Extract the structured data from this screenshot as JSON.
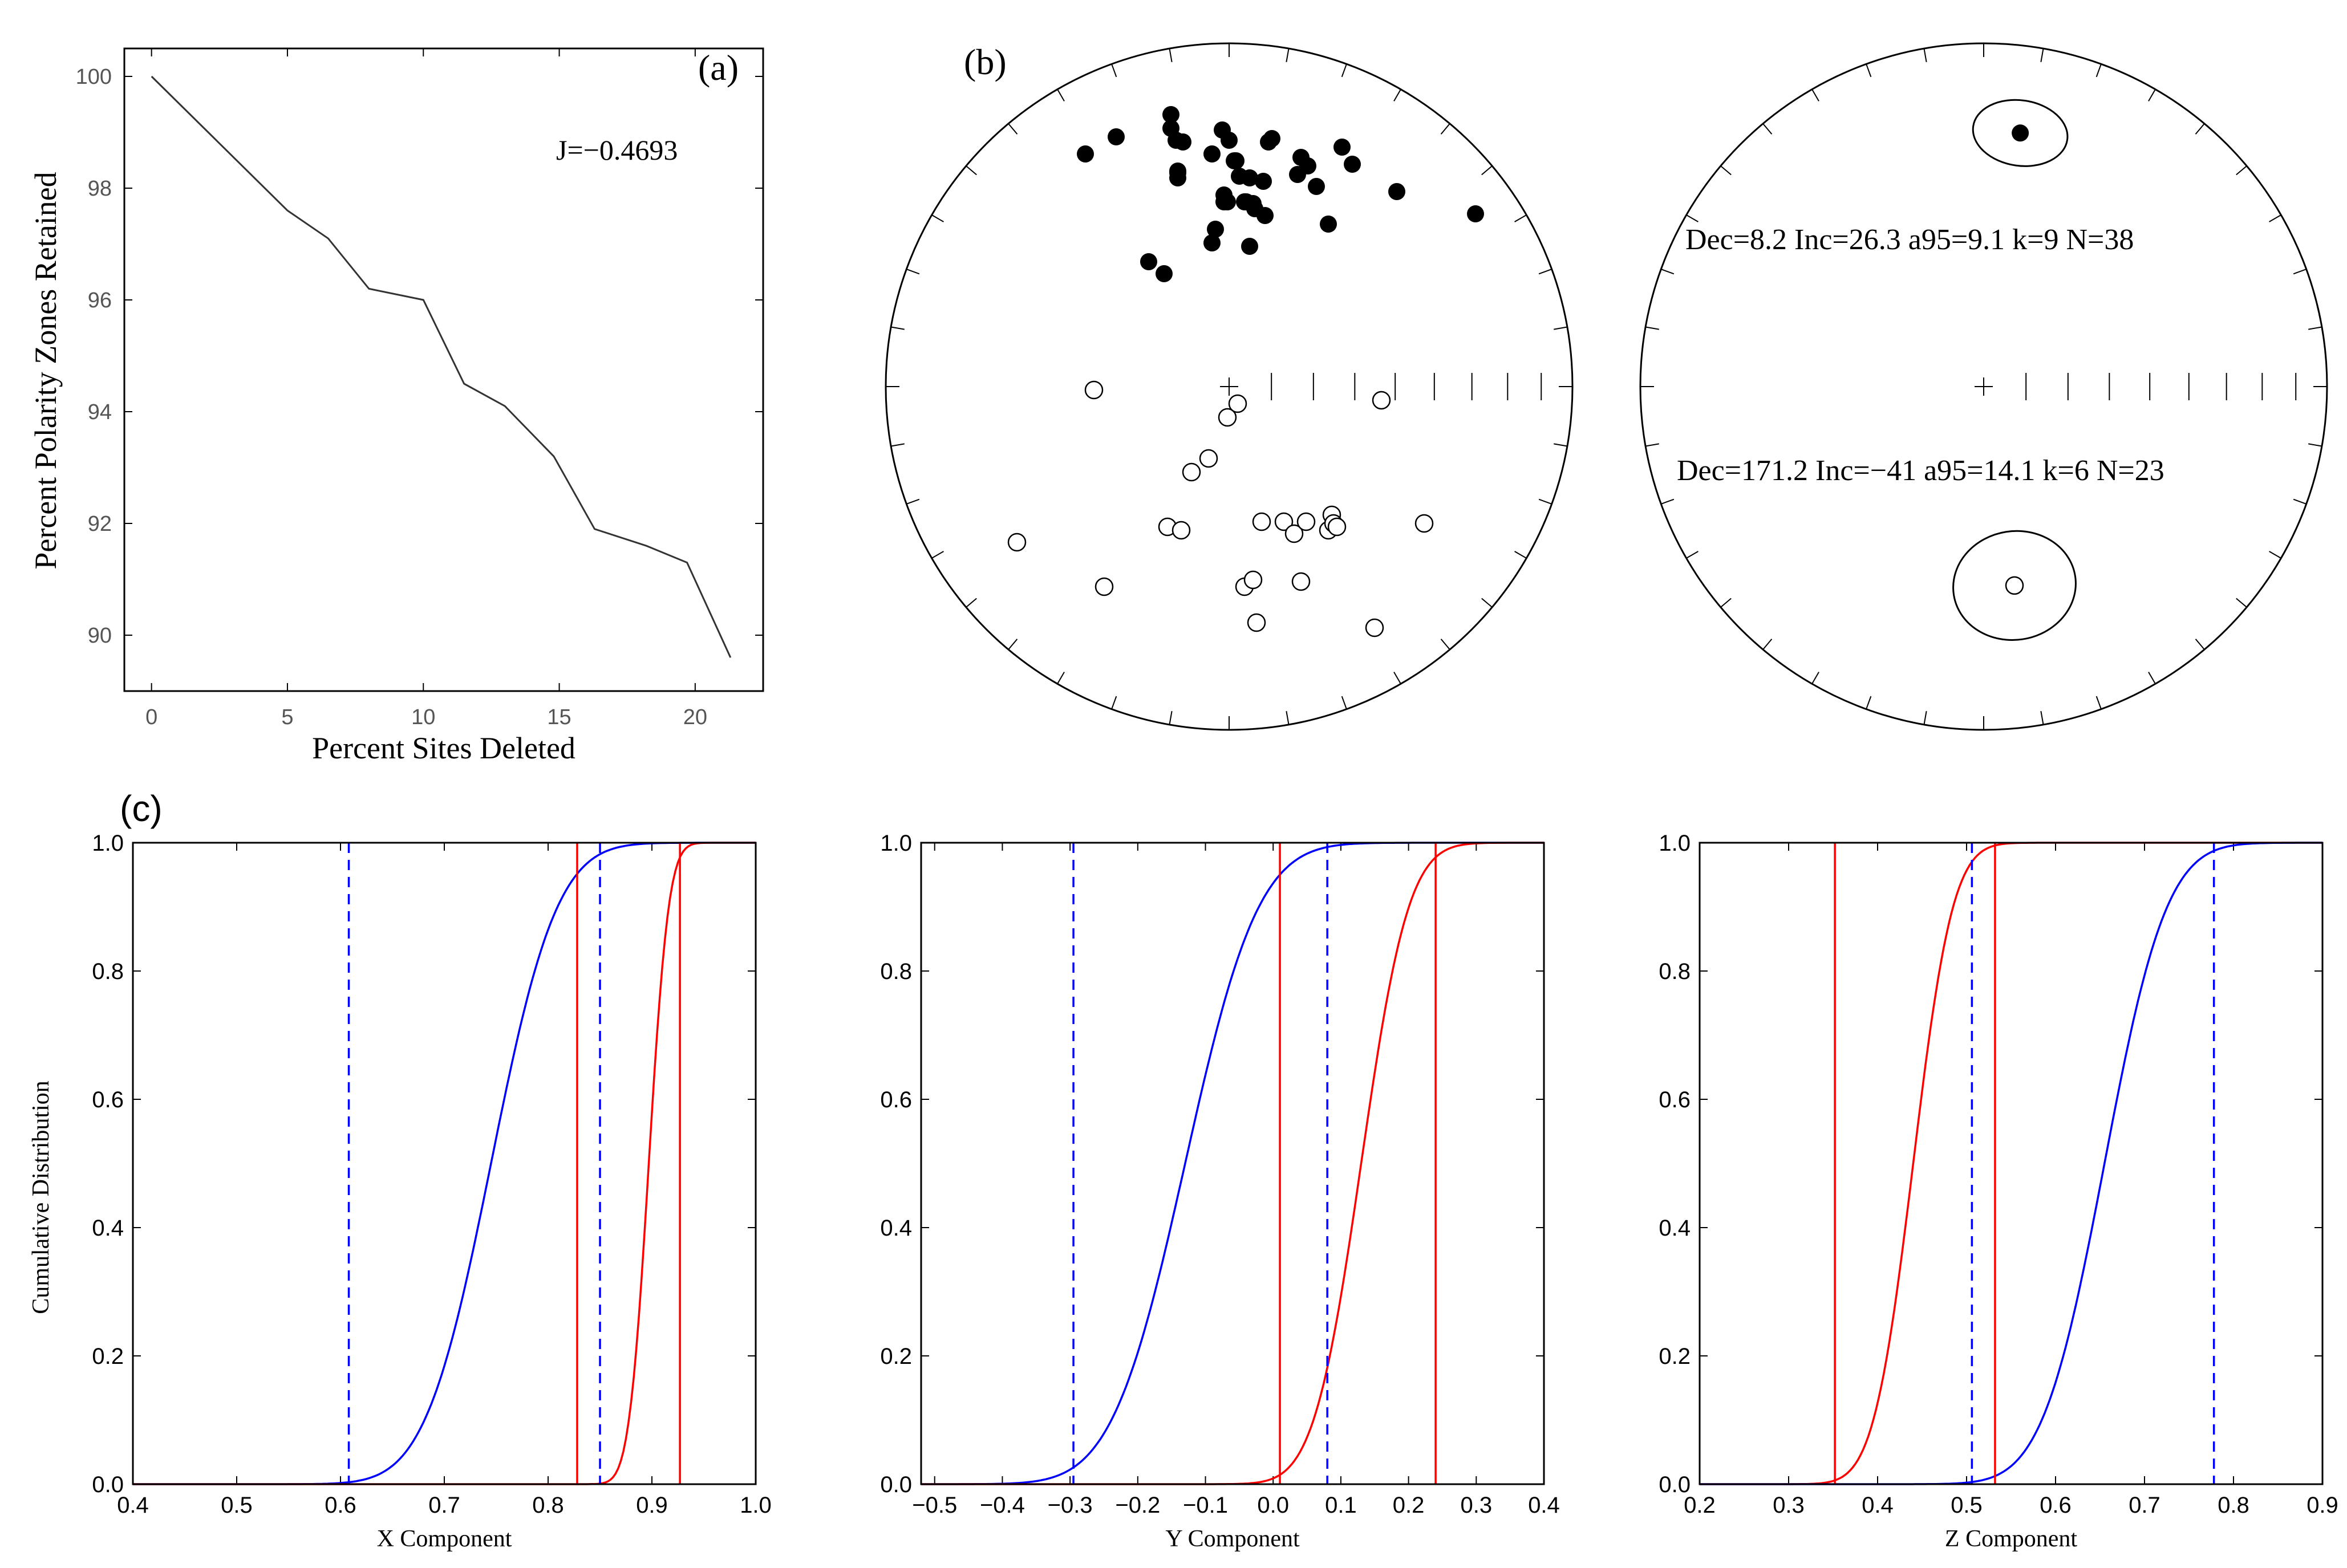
{
  "chart_data": [
    {
      "id": "a",
      "type": "line",
      "panel_label": "(a)",
      "xlabel": "Percent Sites Deleted",
      "ylabel": "Percent Polarity Zones Retained",
      "annotation": "J=−0.4693",
      "xlim": [
        -1,
        22.5
      ],
      "ylim": [
        89,
        100.5
      ],
      "xticks": [
        "0",
        "5",
        "10",
        "15",
        "20"
      ],
      "yticks": [
        "90",
        "92",
        "94",
        "96",
        "98",
        "100"
      ],
      "x": [
        0,
        5,
        6.5,
        8,
        10,
        11.5,
        13,
        14.8,
        16.3,
        18.2,
        19.7,
        21.3
      ],
      "y": [
        100,
        97.6,
        97.1,
        96.2,
        96.0,
        94.5,
        94.1,
        93.2,
        91.9,
        91.6,
        91.3,
        89.6
      ],
      "color": "#333333"
    },
    {
      "id": "b",
      "type": "scatter",
      "subtype": "equal-area stereonet",
      "panel_label": "(b)",
      "series": [
        {
          "name": "normal",
          "fill": "filled",
          "x": [
            -0.84,
            -0.66,
            -0.34,
            -0.34,
            -0.31,
            -0.3,
            -0.3,
            -0.3,
            -0.27,
            -0.1,
            -0.08,
            -0.04,
            -0.03,
            -0.01,
            -0.03,
            -0.1,
            -0.38,
            -0.47,
            0.0,
            0.03,
            0.06,
            0.09,
            0.1,
            0.14,
            0.15,
            0.21,
            0.23,
            0.25,
            0.4,
            0.42,
            0.46,
            0.51,
            0.66,
            0.72,
            0.98,
            1.44,
            0.04,
            0.12,
            0.12,
            0.58,
            0.2
          ],
          "y": [
            1.36,
            1.46,
            1.59,
            1.51,
            1.44,
            1.26,
            1.25,
            1.22,
            1.43,
            1.36,
            0.92,
            1.5,
            1.08,
            1.08,
            1.12,
            0.84,
            0.66,
            0.73,
            1.44,
            1.32,
            1.23,
            1.08,
            1.08,
            1.07,
            1.04,
            1.0,
            1.43,
            1.45,
            1.24,
            1.34,
            1.29,
            1.17,
            1.4,
            1.3,
            1.14,
            1.01,
            1.32,
            1.22,
            0.82,
            0.95,
            1.2
          ]
        },
        {
          "name": "reverse",
          "fill": "open",
          "x": [
            -0.79,
            -1.24,
            -0.73,
            -0.36,
            -0.28,
            -0.22,
            -0.12,
            -0.01,
            0.05,
            0.09,
            0.16,
            0.14,
            0.19,
            0.32,
            0.38,
            0.42,
            0.45,
            0.58,
            0.6,
            0.61,
            0.63,
            0.85,
            0.89,
            1.14
          ],
          "y": [
            -0.02,
            -0.91,
            -1.17,
            -0.82,
            -0.84,
            -0.5,
            -0.42,
            -0.18,
            -0.1,
            -1.17,
            -1.38,
            -1.13,
            -0.79,
            -0.79,
            -0.86,
            -1.14,
            -0.79,
            -0.84,
            -0.75,
            -0.8,
            -0.82,
            -1.41,
            -0.08,
            -0.8
          ]
        }
      ]
    },
    {
      "id": "b2",
      "type": "scatter",
      "subtype": "equal-area stereonet (means with a95 ellipses)",
      "annotations": [
        "Dec=8.2 Inc=26.3  a95=9.1 k=9 N=38",
        "Dec=171.2 Inc=−41  a95=14.1 k=6 N=23"
      ],
      "series": [
        {
          "name": "normal mean",
          "dec": 8.2,
          "inc": 26.3,
          "a95": 9.1,
          "k": 9,
          "N": 38,
          "fill": "filled"
        },
        {
          "name": "reverse mean",
          "dec": 171.2,
          "inc": -41,
          "a95": 14.1,
          "k": 6,
          "N": 23,
          "fill": "open"
        }
      ]
    },
    {
      "id": "c1",
      "type": "line",
      "panel_label": "(c)",
      "ylabel": "Cumulative Distribution",
      "xlabel": "X Component",
      "xlim": [
        0.4,
        1.0
      ],
      "ylim": [
        0.0,
        1.0
      ],
      "xticks": [
        "0.4",
        "0.5",
        "0.6",
        "0.7",
        "0.8",
        "0.9",
        "1.0"
      ],
      "yticks": [
        "0.0",
        "0.2",
        "0.4",
        "0.6",
        "0.8",
        "1.0"
      ],
      "series": [
        {
          "name": "blue CDF",
          "color": "#0000ff",
          "mu": 0.745,
          "sigma": 0.05
        },
        {
          "name": "red CDF",
          "color": "#ff0000",
          "mu": 0.897,
          "sigma": 0.015
        }
      ],
      "vlines": [
        {
          "x": 0.608,
          "color": "#0000ff",
          "style": "dashed"
        },
        {
          "x": 0.85,
          "color": "#0000ff",
          "style": "dashed"
        },
        {
          "x": 0.828,
          "color": "#ff0000",
          "style": "solid"
        },
        {
          "x": 0.927,
          "color": "#ff0000",
          "style": "solid"
        }
      ]
    },
    {
      "id": "c2",
      "type": "line",
      "xlabel": "Y Component",
      "xlim": [
        -0.52,
        0.4
      ],
      "ylim": [
        0.0,
        1.0
      ],
      "xticks": [
        "−0.5",
        "−0.4",
        "−0.3",
        "−0.2",
        "−0.1",
        "0.0",
        "0.1",
        "0.2",
        "0.3",
        "0.4"
      ],
      "yticks": [
        "0.0",
        "0.2",
        "0.4",
        "0.6",
        "0.8",
        "1.0"
      ],
      "series": [
        {
          "name": "blue CDF",
          "color": "#0000ff",
          "mu": -0.13,
          "sigma": 0.085
        },
        {
          "name": "red CDF",
          "color": "#ff0000",
          "mu": 0.13,
          "sigma": 0.055
        }
      ],
      "vlines": [
        {
          "x": -0.295,
          "color": "#0000ff",
          "style": "dashed"
        },
        {
          "x": 0.08,
          "color": "#0000ff",
          "style": "dashed"
        },
        {
          "x": 0.01,
          "color": "#ff0000",
          "style": "solid"
        },
        {
          "x": 0.24,
          "color": "#ff0000",
          "style": "solid"
        }
      ]
    },
    {
      "id": "c3",
      "type": "line",
      "xlabel": "Z Component",
      "xlim": [
        0.2,
        0.9
      ],
      "ylim": [
        0.0,
        1.0
      ],
      "xticks": [
        "0.2",
        "0.3",
        "0.4",
        "0.5",
        "0.6",
        "0.7",
        "0.8",
        "0.9"
      ],
      "yticks": [
        "0.0",
        "0.2",
        "0.4",
        "0.6",
        "0.8",
        "1.0"
      ],
      "series": [
        {
          "name": "red CDF",
          "color": "#ff0000",
          "mu": 0.44,
          "sigma": 0.035
        },
        {
          "name": "blue CDF",
          "color": "#0000ff",
          "mu": 0.655,
          "sigma": 0.055
        }
      ],
      "vlines": [
        {
          "x": 0.352,
          "color": "#ff0000",
          "style": "solid"
        },
        {
          "x": 0.532,
          "color": "#ff0000",
          "style": "solid"
        },
        {
          "x": 0.506,
          "color": "#0000ff",
          "style": "dashed"
        },
        {
          "x": 0.778,
          "color": "#0000ff",
          "style": "dashed"
        }
      ]
    }
  ]
}
